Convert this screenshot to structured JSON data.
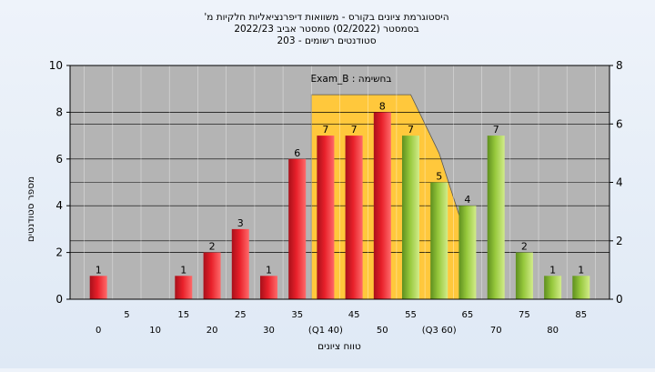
{
  "chart_data": {
    "type": "bar",
    "title_lines": [
      "היסטוגרמת ציונים בקורס - משוואות דיפרנציאליות חלקיות מ'",
      "בסמסטר  (02/2022)  סמסטר אביב 2022/23",
      "סטודנטים רשומים - 203"
    ],
    "annotation": "בחשימה : Exam_B",
    "ylabel": "מספר סטודנטים",
    "xlabel": "טווח ציונים",
    "ylim": [
      0,
      10
    ],
    "y_ticks": [
      0,
      2,
      4,
      6,
      8,
      10
    ],
    "y2lim": [
      0,
      8
    ],
    "y2_ticks": [
      0,
      2,
      4,
      6,
      8
    ],
    "grid": true,
    "x_ticks_upper": [
      "5",
      "15",
      "25",
      "35",
      "45",
      "55",
      "65",
      "75",
      "85"
    ],
    "x_ticks_lower": [
      "0",
      "10",
      "20",
      "30",
      "(Q1 40)",
      "50",
      "(Q3 60)",
      "70",
      "80"
    ],
    "categories": [
      "0",
      "5",
      "10",
      "15",
      "20",
      "25",
      "30",
      "35",
      "40",
      "45",
      "50",
      "55",
      "60",
      "65",
      "70",
      "75",
      "80",
      "85"
    ],
    "values": [
      1,
      0,
      0,
      1,
      2,
      3,
      1,
      6,
      7,
      7,
      8,
      7,
      5,
      4,
      7,
      2,
      1,
      1
    ],
    "colors": {
      "below_median": "#e8202a",
      "above_median": "#96c83c",
      "iqr_band": "#ffc83c",
      "plot_bg": "#b4b4b4",
      "grid": "#000000"
    },
    "median_split_index": 11,
    "iqr_band": {
      "points": [
        [
          40,
          7
        ],
        [
          55,
          7
        ],
        [
          60,
          5
        ],
        [
          65,
          2
        ]
      ]
    }
  }
}
